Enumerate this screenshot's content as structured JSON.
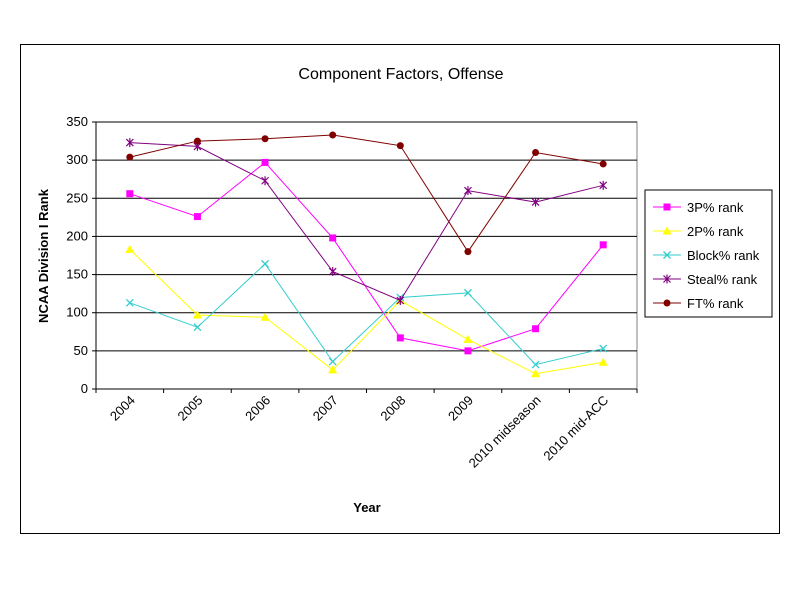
{
  "chart_data": {
    "type": "line",
    "title": "Component Factors, Offense",
    "xlabel": "Year",
    "ylabel": "NCAA Division I Rank",
    "ylim": [
      0,
      350
    ],
    "yticks": [
      0,
      50,
      100,
      150,
      200,
      250,
      300,
      350
    ],
    "grid": "horizontal",
    "legend_position": "right",
    "categories": [
      "2004",
      "2005",
      "2006",
      "2007",
      "2008",
      "2009",
      "2010 midseason",
      "2010 mid-ACC"
    ],
    "series": [
      {
        "name": "3P% rank",
        "color": "#ff00ff",
        "marker": "square",
        "values": [
          256,
          226,
          297,
          198,
          67,
          50,
          79,
          189
        ]
      },
      {
        "name": "2P% rank",
        "color": "#ffff00",
        "marker": "triangle",
        "values": [
          183,
          97,
          94,
          25,
          116,
          65,
          20,
          35
        ]
      },
      {
        "name": "Block% rank",
        "color": "#33cccc",
        "marker": "x",
        "values": [
          113,
          81,
          164,
          36,
          120,
          126,
          32,
          53
        ]
      },
      {
        "name": "Steal% rank",
        "color": "#800080",
        "marker": "star",
        "values": [
          323,
          318,
          273,
          154,
          116,
          260,
          245,
          267
        ]
      },
      {
        "name": "FT% rank",
        "color": "#800000",
        "marker": "circle",
        "values": [
          304,
          325,
          328,
          333,
          319,
          180,
          310,
          295
        ]
      }
    ]
  }
}
